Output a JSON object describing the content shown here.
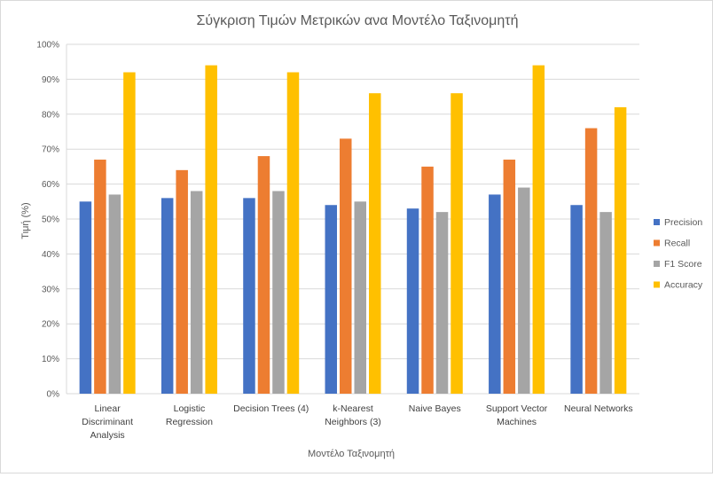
{
  "chart_data": {
    "type": "bar",
    "title": "Σύγκριση Τιμών Μετρικών ανα Μοντέλο Ταξινομητή",
    "xlabel": "Μοντέλο Ταξινομητή",
    "ylabel": "Τιμή (%)",
    "ylim": [
      0,
      100
    ],
    "yticks": [
      "0%",
      "10%",
      "20%",
      "30%",
      "40%",
      "50%",
      "60%",
      "70%",
      "80%",
      "90%",
      "100%"
    ],
    "grid": true,
    "legend_position": "right",
    "categories": [
      [
        "Linear",
        "Discriminant",
        "Analysis"
      ],
      [
        "Logistic",
        "Regression"
      ],
      [
        "Decision Trees (4)"
      ],
      [
        "k-Nearest",
        "Neighbors (3)"
      ],
      [
        "Naive Bayes"
      ],
      [
        "Support Vector",
        "Machines"
      ],
      [
        "Neural Networks"
      ]
    ],
    "series": [
      {
        "name": "Precision",
        "color": "#4472c4",
        "values": [
          55,
          56,
          56,
          54,
          53,
          57,
          54
        ]
      },
      {
        "name": "Recall",
        "color": "#ed7d31",
        "values": [
          67,
          64,
          68,
          73,
          65,
          67,
          76
        ]
      },
      {
        "name": "F1 Score",
        "color": "#a5a5a5",
        "values": [
          57,
          58,
          58,
          55,
          52,
          59,
          52
        ]
      },
      {
        "name": "Accuracy",
        "color": "#ffc000",
        "values": [
          92,
          94,
          92,
          86,
          86,
          94,
          82
        ]
      }
    ]
  }
}
